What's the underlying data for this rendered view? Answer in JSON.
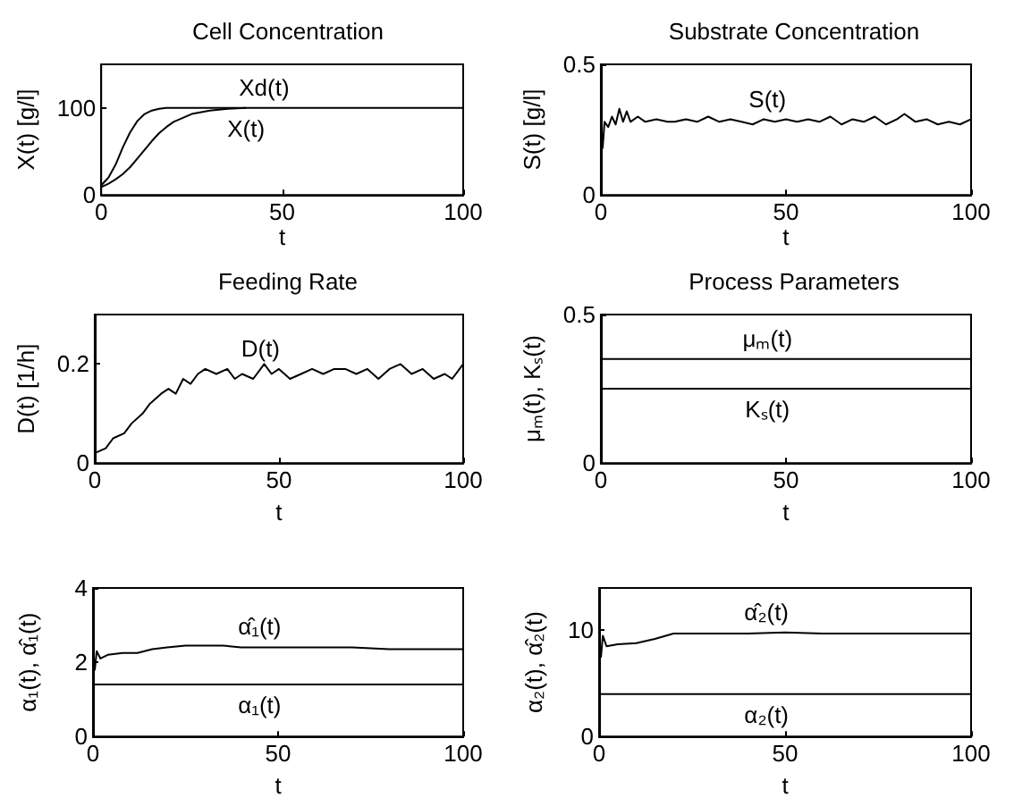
{
  "chart_data": [
    {
      "type": "line",
      "title": "Cell Concentration",
      "xlabel": "t",
      "ylabel": "X(t) [g/l]",
      "xlim": [
        0,
        100
      ],
      "xticks": [
        0,
        50,
        100
      ],
      "ylim": [
        0,
        150
      ],
      "yticks": [
        0,
        100
      ],
      "marker": "none",
      "series": [
        {
          "name": "Xd(t)",
          "color": "#000000",
          "x": [
            0,
            2,
            4,
            6,
            8,
            10,
            12,
            14,
            16,
            18,
            20,
            25,
            30,
            35,
            40,
            100
          ],
          "values": [
            11,
            20,
            35,
            55,
            72,
            85,
            93,
            97,
            99,
            100,
            100,
            100,
            100,
            100,
            100,
            100
          ]
        },
        {
          "name": "X(t)",
          "color": "#000000",
          "x": [
            0,
            2,
            4,
            6,
            8,
            10,
            12,
            14,
            16,
            18,
            20,
            25,
            30,
            35,
            40
          ],
          "values": [
            9,
            13,
            18,
            24,
            32,
            42,
            52,
            62,
            71,
            78,
            84,
            93,
            97,
            99,
            100
          ]
        }
      ]
    },
    {
      "type": "line",
      "title": "Substrate Concentration",
      "xlabel": "t",
      "ylabel": "S(t) [g/l]",
      "xlim": [
        0,
        100
      ],
      "xticks": [
        0,
        50,
        100
      ],
      "ylim": [
        0,
        0.5
      ],
      "yticks": [
        0,
        0.5
      ],
      "marker": "none",
      "series": [
        {
          "name": "S(t)",
          "color": "#000000",
          "x": [
            0,
            0.5,
            1,
            2,
            3,
            4,
            5,
            6,
            7,
            8,
            10,
            12,
            15,
            18,
            20,
            23,
            26,
            29,
            32,
            35,
            38,
            41,
            44,
            47,
            50,
            53,
            56,
            59,
            62,
            65,
            68,
            71,
            74,
            77,
            80,
            82,
            85,
            88,
            91,
            94,
            97,
            100
          ],
          "values": [
            0.3,
            0.18,
            0.28,
            0.26,
            0.3,
            0.27,
            0.33,
            0.28,
            0.32,
            0.28,
            0.3,
            0.28,
            0.29,
            0.28,
            0.28,
            0.29,
            0.28,
            0.3,
            0.28,
            0.29,
            0.28,
            0.27,
            0.29,
            0.28,
            0.29,
            0.28,
            0.29,
            0.28,
            0.3,
            0.27,
            0.29,
            0.28,
            0.3,
            0.27,
            0.29,
            0.31,
            0.28,
            0.29,
            0.27,
            0.28,
            0.27,
            0.29
          ]
        }
      ]
    },
    {
      "type": "line",
      "title": "Feeding Rate",
      "xlabel": "t",
      "ylabel": "D(t) [1/h]",
      "xlim": [
        0,
        100
      ],
      "xticks": [
        0,
        50,
        100
      ],
      "ylim": [
        0,
        0.3
      ],
      "yticks": [
        0,
        0.2
      ],
      "marker": "none",
      "series": [
        {
          "name": "D(t)",
          "color": "#000000",
          "x": [
            0,
            3,
            5,
            8,
            10,
            13,
            15,
            18,
            20,
            22,
            24,
            26,
            28,
            30,
            33,
            36,
            38,
            40,
            43,
            46,
            48,
            50,
            53,
            56,
            59,
            62,
            65,
            68,
            71,
            74,
            77,
            80,
            83,
            86,
            89,
            92,
            95,
            97,
            100
          ],
          "values": [
            0.02,
            0.03,
            0.05,
            0.06,
            0.08,
            0.1,
            0.12,
            0.14,
            0.15,
            0.14,
            0.17,
            0.16,
            0.18,
            0.19,
            0.18,
            0.19,
            0.17,
            0.18,
            0.17,
            0.2,
            0.18,
            0.19,
            0.17,
            0.18,
            0.19,
            0.18,
            0.19,
            0.19,
            0.18,
            0.19,
            0.17,
            0.19,
            0.2,
            0.18,
            0.19,
            0.17,
            0.18,
            0.17,
            0.2
          ]
        }
      ]
    },
    {
      "type": "line",
      "title": "Process Parameters",
      "xlabel": "t",
      "ylabel": "μₘ(t), Kₛ(t)",
      "xlim": [
        0,
        100
      ],
      "xticks": [
        0,
        50,
        100
      ],
      "ylim": [
        0,
        0.5
      ],
      "yticks": [
        0,
        0.5
      ],
      "marker": "none",
      "series": [
        {
          "name": "μₘ(t)",
          "color": "#000000",
          "x": [
            0,
            100
          ],
          "values": [
            0.35,
            0.35
          ]
        },
        {
          "name": "Kₛ(t)",
          "color": "#000000",
          "x": [
            0,
            100
          ],
          "values": [
            0.25,
            0.25
          ]
        }
      ]
    },
    {
      "type": "line",
      "xlabel": "t",
      "ylabel": "α₁(t), α̂₁(t)",
      "xlim": [
        0,
        100
      ],
      "xticks": [
        0,
        50,
        100
      ],
      "ylim": [
        0,
        4
      ],
      "yticks": [
        0,
        2,
        4
      ],
      "marker": "none",
      "series": [
        {
          "name": "α̂₁(t)",
          "color": "#000000",
          "x": [
            0,
            0.5,
            1,
            2,
            4,
            8,
            12,
            16,
            20,
            25,
            30,
            35,
            40,
            50,
            60,
            70,
            80,
            90,
            100
          ],
          "values": [
            2.3,
            1.8,
            2.3,
            2.1,
            2.2,
            2.25,
            2.25,
            2.35,
            2.4,
            2.45,
            2.45,
            2.45,
            2.4,
            2.4,
            2.4,
            2.4,
            2.35,
            2.35,
            2.35
          ]
        },
        {
          "name": "α₁(t)",
          "color": "#000000",
          "x": [
            0,
            100
          ],
          "values": [
            1.4,
            1.4
          ]
        }
      ]
    },
    {
      "type": "line",
      "xlabel": "t",
      "ylabel": "α₂(t), α̂₂(t)",
      "xlim": [
        0,
        100
      ],
      "xticks": [
        0,
        50,
        100
      ],
      "ylim": [
        0,
        14
      ],
      "yticks": [
        0,
        10
      ],
      "marker": "none",
      "series": [
        {
          "name": "α̂₂(t)",
          "color": "#000000",
          "x": [
            0,
            0.5,
            1,
            2,
            5,
            10,
            15,
            20,
            30,
            40,
            50,
            60,
            70,
            80,
            90,
            100
          ],
          "values": [
            9,
            7.5,
            9.5,
            8.5,
            8.7,
            8.8,
            9.2,
            9.7,
            9.7,
            9.7,
            9.8,
            9.7,
            9.7,
            9.7,
            9.7,
            9.7
          ]
        },
        {
          "name": "α₂(t)",
          "color": "#000000",
          "x": [
            0,
            100
          ],
          "values": [
            4,
            4
          ]
        }
      ]
    }
  ]
}
